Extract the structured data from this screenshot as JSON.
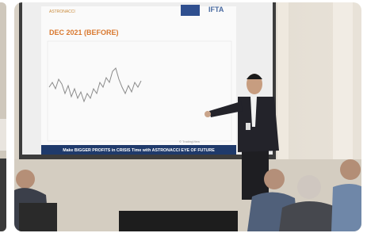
{
  "slide": {
    "title": "DEC 2021 (BEFORE)",
    "logo": "IFTA",
    "banner": "Make BIGGER PROFITS in CRISIS Time with ASTRONACCI EYE OF FUTURE"
  }
}
